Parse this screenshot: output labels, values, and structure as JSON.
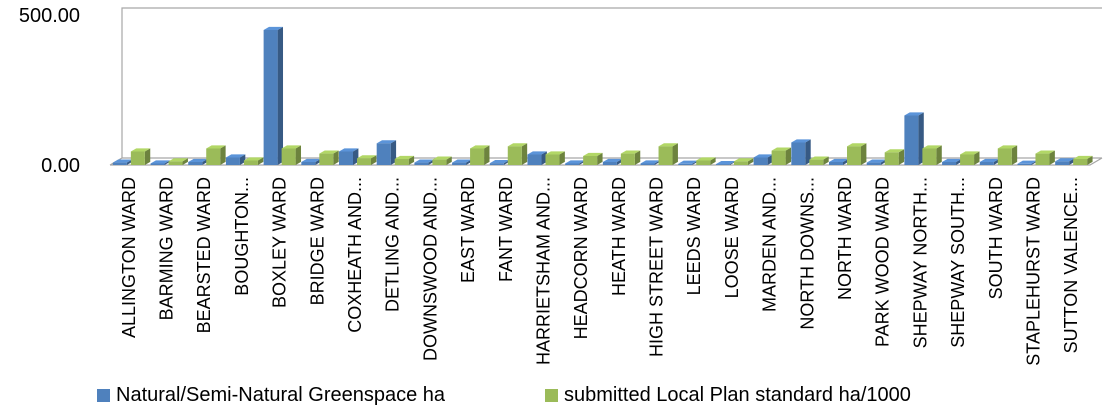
{
  "chart_data": {
    "type": "bar",
    "title": "",
    "xlabel": "",
    "ylabel": "",
    "ylim": [
      0,
      500
    ],
    "y_ticks": [
      "0.00",
      "500.00"
    ],
    "grid": false,
    "legend_position": "bottom",
    "categories": [
      "ALLINGTON WARD",
      "BARMING WARD",
      "BEARSTED WARD",
      "BOUGHTON...",
      "BOXLEY WARD",
      "BRIDGE WARD",
      "COXHEATH AND...",
      "DETLING AND...",
      "DOWNSWOOD AND...",
      "EAST WARD",
      "FANT WARD",
      "HARRIETSHAM AND...",
      "HEADCORN WARD",
      "HEATH WARD",
      "HIGH STREET WARD",
      "LEEDS WARD",
      "LOOSE WARD",
      "MARDEN AND...",
      "NORTH DOWNS...",
      "NORTH WARD",
      "PARK WOOD WARD",
      "SHEPWAY NORTH...",
      "SHEPWAY SOUTH...",
      "SOUTH WARD",
      "STAPLEHURST WARD",
      "SUTTON VALENCE..."
    ],
    "series": [
      {
        "name": "Natural/Semi-Natural Greenspace ha",
        "color": "#4F81BD",
        "values": [
          8,
          5,
          10,
          25,
          450,
          10,
          45,
          72,
          8,
          8,
          6,
          35,
          5,
          10,
          5,
          4,
          3,
          25,
          75,
          10,
          8,
          165,
          10,
          10,
          4,
          12
        ]
      },
      {
        "name": "submitted Local Plan standard ha/1000",
        "color": "#9BBB59",
        "values": [
          45,
          12,
          55,
          15,
          55,
          38,
          22,
          20,
          18,
          55,
          62,
          35,
          30,
          38,
          62,
          15,
          12,
          48,
          18,
          62,
          42,
          55,
          35,
          55,
          38,
          20
        ]
      }
    ]
  }
}
